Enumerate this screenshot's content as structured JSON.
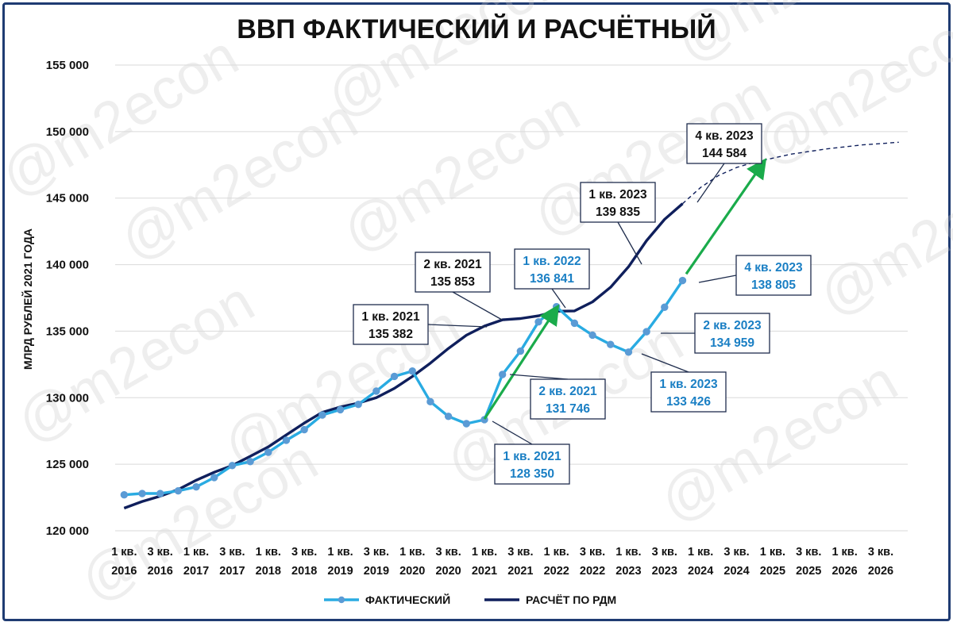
{
  "chart_data": {
    "type": "line",
    "title": "ВВП ФАКТИЧЕСКИЙ И РАСЧЁТНЫЙ",
    "ylabel": "МЛРД РУБЛЕЙ 2021 ГОДА",
    "ylim": [
      120000,
      155000
    ],
    "yticks": [
      {
        "value": 120000,
        "label": "120 000"
      },
      {
        "value": 125000,
        "label": "125 000"
      },
      {
        "value": 130000,
        "label": "130 000"
      },
      {
        "value": 135000,
        "label": "135 000"
      },
      {
        "value": 140000,
        "label": "140 000"
      },
      {
        "value": 145000,
        "label": "145 000"
      },
      {
        "value": 150000,
        "label": "150 000"
      },
      {
        "value": 155000,
        "label": "155 000"
      }
    ],
    "xtick_labels": [
      {
        "index": 0,
        "q": "1 кв.",
        "year": "2016"
      },
      {
        "index": 2,
        "q": "3 кв.",
        "year": "2016"
      },
      {
        "index": 4,
        "q": "1 кв.",
        "year": "2017"
      },
      {
        "index": 6,
        "q": "3 кв.",
        "year": "2017"
      },
      {
        "index": 8,
        "q": "1 кв.",
        "year": "2018"
      },
      {
        "index": 10,
        "q": "3 кв.",
        "year": "2018"
      },
      {
        "index": 12,
        "q": "1 кв.",
        "year": "2019"
      },
      {
        "index": 14,
        "q": "3 кв.",
        "year": "2019"
      },
      {
        "index": 16,
        "q": "1 кв.",
        "year": "2020"
      },
      {
        "index": 18,
        "q": "3 кв.",
        "year": "2020"
      },
      {
        "index": 20,
        "q": "1 кв.",
        "year": "2021"
      },
      {
        "index": 22,
        "q": "3 кв.",
        "year": "2021"
      },
      {
        "index": 24,
        "q": "1 кв.",
        "year": "2022"
      },
      {
        "index": 26,
        "q": "3 кв.",
        "year": "2022"
      },
      {
        "index": 28,
        "q": "1 кв.",
        "year": "2023"
      },
      {
        "index": 30,
        "q": "3 кв.",
        "year": "2023"
      },
      {
        "index": 32,
        "q": "1 кв.",
        "year": "2024"
      },
      {
        "index": 34,
        "q": "3 кв.",
        "year": "2024"
      },
      {
        "index": 36,
        "q": "1 кв.",
        "year": "2025"
      },
      {
        "index": 38,
        "q": "3 кв.",
        "year": "2025"
      },
      {
        "index": 40,
        "q": "1 кв.",
        "year": "2026"
      },
      {
        "index": 42,
        "q": "3 кв.",
        "year": "2026"
      }
    ],
    "x_count": 44,
    "series": [
      {
        "name": "ФАКТИЧЕСКИЙ",
        "color": "#29abe2",
        "marker": "circle",
        "marker_color": "#5b9bd5",
        "start_index": 0,
        "values": [
          122700,
          122800,
          122800,
          123000,
          123300,
          124000,
          124900,
          125200,
          125900,
          126800,
          127600,
          128700,
          129100,
          129500,
          130500,
          131600,
          132000,
          129700,
          128600,
          128050,
          128350,
          131746,
          133500,
          135700,
          136841,
          135600,
          134700,
          134000,
          133426,
          134959,
          136800,
          138805
        ]
      },
      {
        "name": "РАСЧЁТ ПО РДМ",
        "color": "#0f1f5c",
        "marker": "none",
        "start_index": 0,
        "values": [
          121700,
          122200,
          122600,
          123100,
          123800,
          124400,
          124900,
          125600,
          126300,
          127200,
          128100,
          128900,
          129300,
          129600,
          130000,
          130700,
          131600,
          132600,
          133700,
          134700,
          135382,
          135853,
          135950,
          136150,
          136500,
          136520,
          137200,
          138300,
          139835,
          141800,
          143400,
          144584
        ]
      },
      {
        "name": "",
        "color": "#0f1f5c",
        "dashed": true,
        "start_index": 31,
        "values": [
          144584,
          145800,
          146700,
          147300,
          147700,
          148000,
          148300,
          148500,
          148700,
          148850,
          149000,
          149100,
          149200
        ]
      }
    ],
    "annotations": [
      {
        "label": "4 кв. 2023",
        "value": "144 584",
        "style": "dark",
        "index": 31
      },
      {
        "label": "1 кв. 2023",
        "value": "139 835",
        "style": "dark",
        "index": 28
      },
      {
        "label": "2 кв. 2021",
        "value": "135 853",
        "style": "dark",
        "index": 21
      },
      {
        "label": "1 кв. 2021",
        "value": "135 382",
        "style": "dark",
        "index": 20
      },
      {
        "label": "1 кв. 2022",
        "value": "136 841",
        "style": "blue",
        "index": 24
      },
      {
        "label": "4 кв. 2023",
        "value": "138 805",
        "style": "blue",
        "index": 31
      },
      {
        "label": "2 кв. 2023",
        "value": "134 959",
        "style": "blue",
        "index": 29
      },
      {
        "label": "1 кв. 2023",
        "value": "133 426",
        "style": "blue",
        "index": 28
      },
      {
        "label": "2 кв. 2021",
        "value": "131 746",
        "style": "blue",
        "index": 21
      },
      {
        "label": "1 кв. 2021",
        "value": "128 350",
        "style": "blue",
        "index": 20
      }
    ],
    "arrows": [
      {
        "from": [
          20,
          128400
        ],
        "to": [
          24,
          136700
        ],
        "color": "#1aab4b"
      },
      {
        "from": [
          31.2,
          139300
        ],
        "to": [
          35.5,
          147700
        ],
        "color": "#1aab4b"
      }
    ],
    "legend": {
      "placement": "bottom-center",
      "items": [
        {
          "label": "ФАКТИЧЕСКИЙ",
          "color": "#29abe2",
          "marker": "circle"
        },
        {
          "label": "РАСЧЁТ ПО РДМ",
          "color": "#0f1f5c",
          "marker": "none"
        }
      ]
    },
    "grid": {
      "horizontal": true,
      "vertical": false,
      "color": "#d9d9d9"
    },
    "watermark": "@m2econ"
  }
}
